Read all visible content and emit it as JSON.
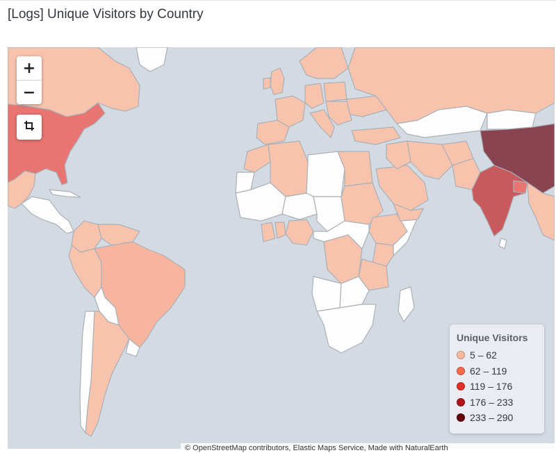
{
  "panel": {
    "title": "[Logs] Unique Visitors by Country"
  },
  "controls": {
    "zoom_in": "+",
    "zoom_out": "−",
    "crop_icon": "crop-icon"
  },
  "legend": {
    "title": "Unique Visitors",
    "items": [
      {
        "label": "5 – 62",
        "color": "#fcbba1"
      },
      {
        "label": "62 – 119",
        "color": "#fb6a4a"
      },
      {
        "label": "119 – 176",
        "color": "#e32f27"
      },
      {
        "label": "176 – 233",
        "color": "#b11318"
      },
      {
        "label": "233 – 290",
        "color": "#67000d"
      }
    ]
  },
  "attribution": "© OpenStreetMap contributors, Elastic Maps Service, Made with NaturalEarth",
  "colors": {
    "water": "#d3dae2",
    "no_data": "#fdfdfd",
    "low": "#f7c3ad",
    "medium": "#e87572",
    "high": "#c85a5e",
    "max": "#8a4350"
  }
}
